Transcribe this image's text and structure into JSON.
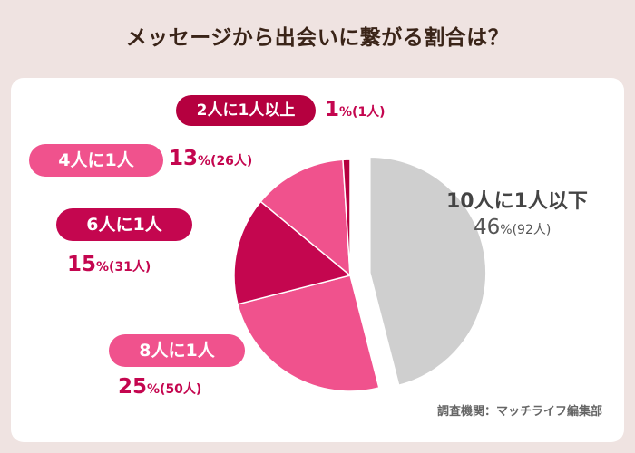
{
  "title": "メッセージから出会いに繋がる割合は？",
  "source": "調査機関：マッチライフ編集部",
  "colors": {
    "gray": "#cfcfcf",
    "pink": "#f0528d",
    "crimson": "#c4064f",
    "dark": "#b5003f"
  },
  "labels": {
    "s1": {
      "name": "10人に1人以下",
      "pct": "46",
      "unit": "%",
      "count": "(92人)"
    },
    "s2": {
      "name": "8人に1人",
      "pct": "25",
      "unit": "%",
      "count": "(50人)"
    },
    "s3": {
      "name": "6人に1人",
      "pct": "15",
      "unit": "%",
      "count": "(31人)"
    },
    "s4": {
      "name": "4人に1人",
      "pct": "13",
      "unit": "%",
      "count": "(26人)"
    },
    "s5": {
      "name": "2人に1人以上",
      "pct": "1",
      "unit": "%",
      "count": "(1人)"
    }
  },
  "chart_data": {
    "type": "pie",
    "categories": [
      "10人に1人以下",
      "8人に1人",
      "6人に1人",
      "4人に1人",
      "2人に1人以上"
    ],
    "values": [
      46,
      25,
      15,
      13,
      1
    ],
    "counts": [
      92,
      50,
      31,
      26,
      1
    ],
    "colors": [
      "#cfcfcf",
      "#f0528d",
      "#c4064f",
      "#f0528d",
      "#b5003f"
    ],
    "exploded": [
      true,
      false,
      false,
      false,
      false
    ]
  }
}
